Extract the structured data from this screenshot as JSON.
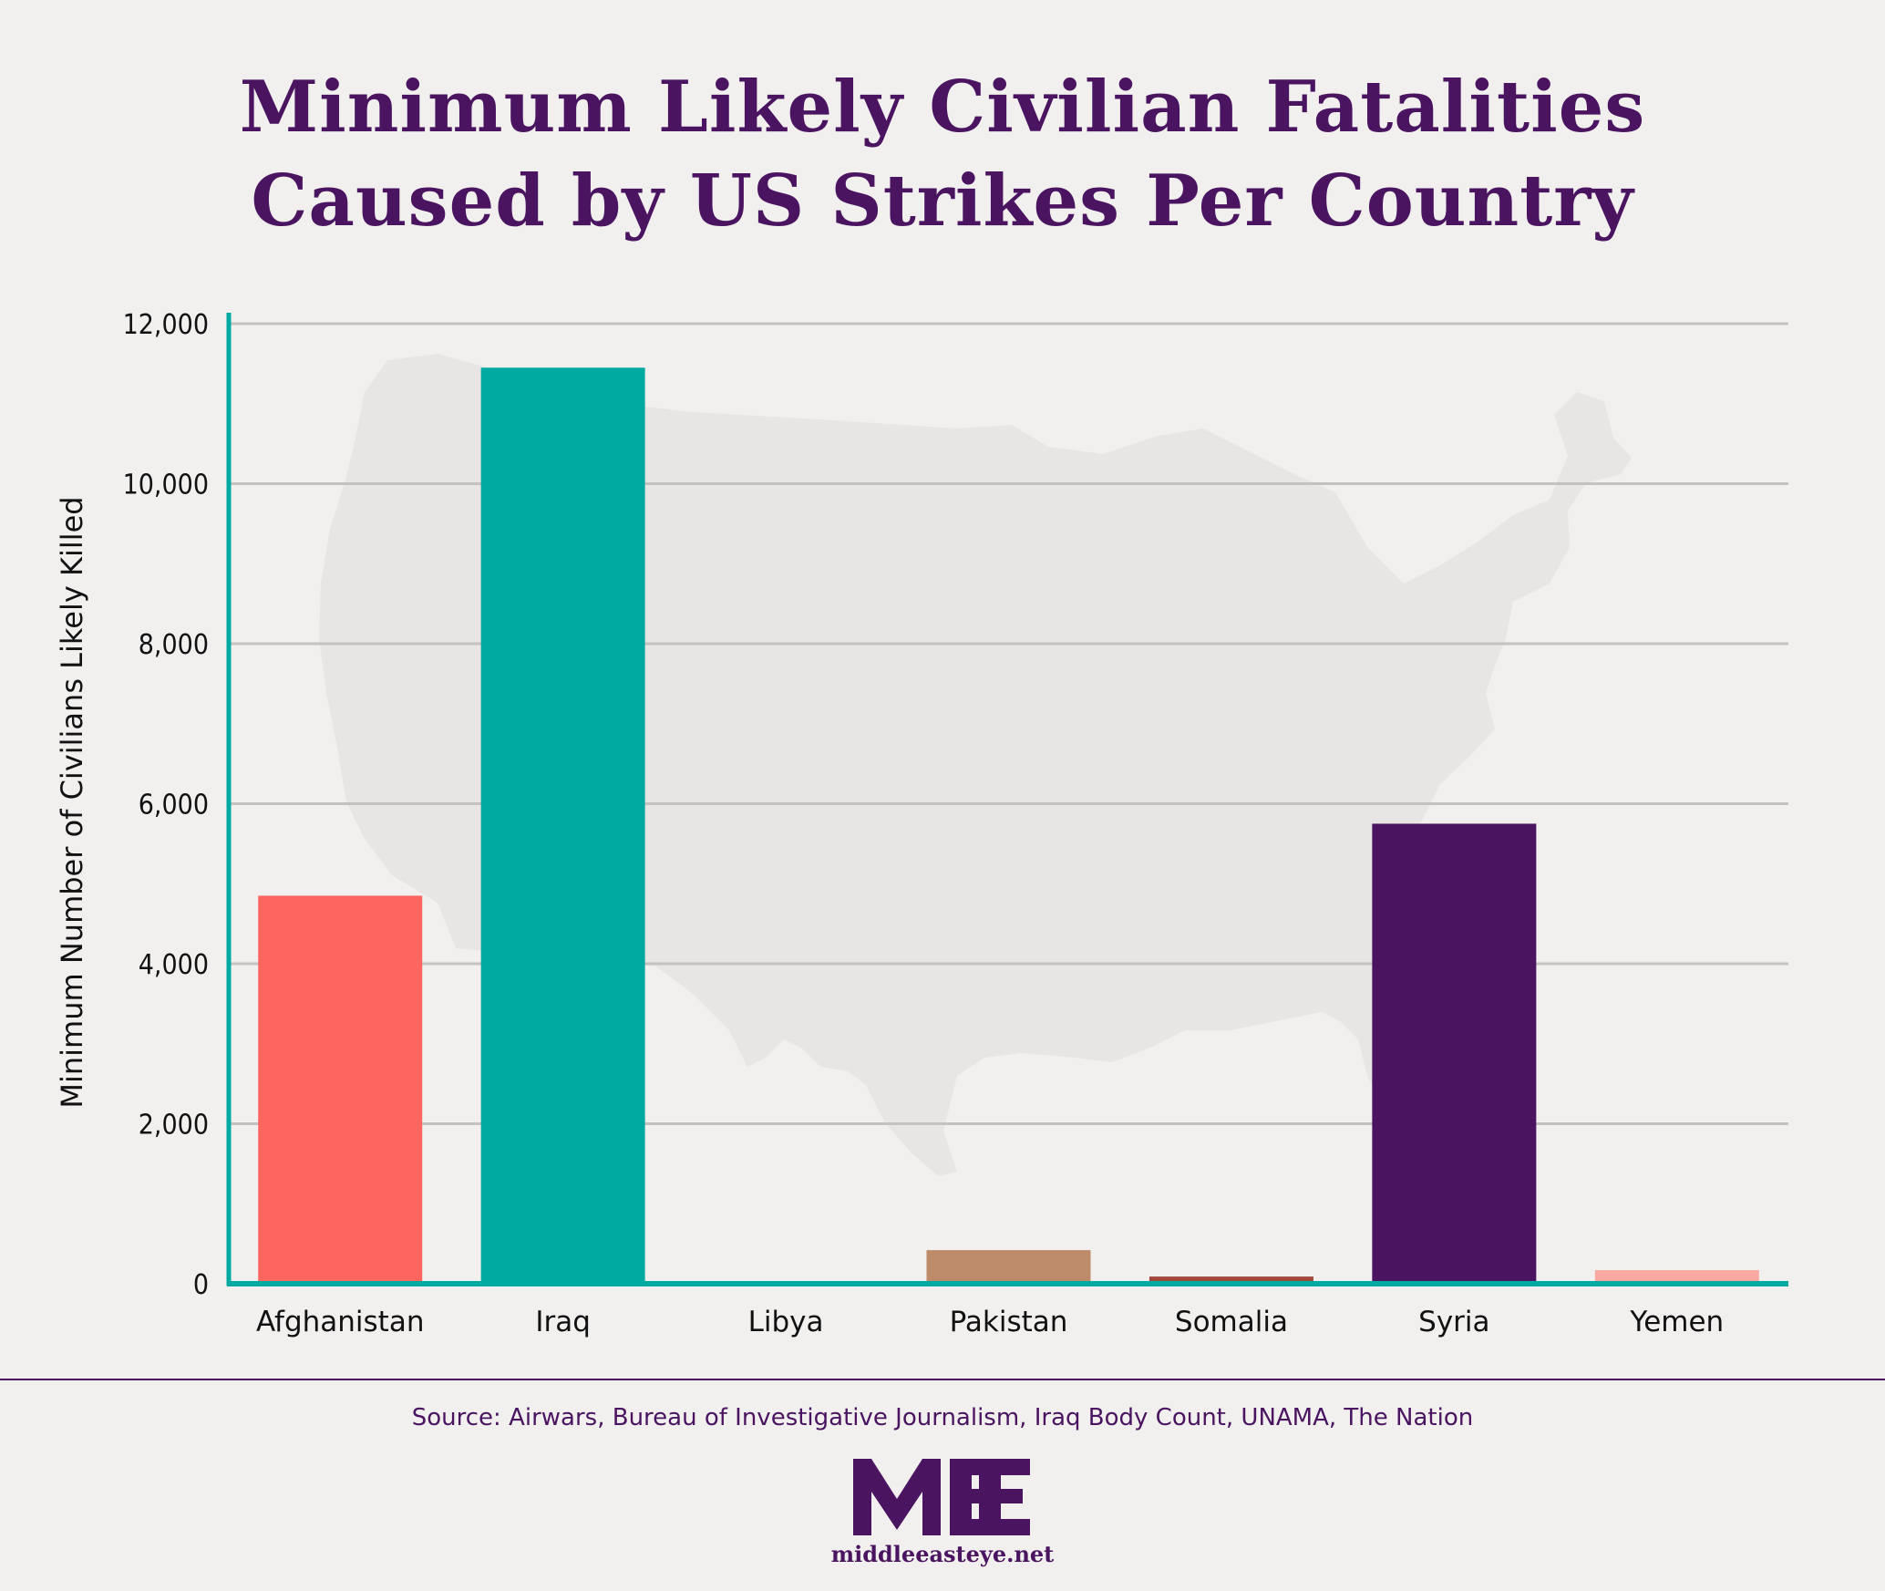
{
  "title_lines": [
    "Minimum Likely Civilian Fatalities",
    "Caused by US Strikes Per Country"
  ],
  "source": "Source: Airwars, Bureau of Investigative Journalism, Iraq Body Count, UNAMA, The Nation",
  "site": "middleeasteye.net",
  "logo_text": "MEE",
  "colors": {
    "title": "#4a1460",
    "axis": "#00aaa0",
    "grid": "#c4c2c1",
    "map": "#e7e6e4"
  },
  "background_icon": "us-map-silhouette",
  "chart_data": {
    "type": "bar",
    "title": "Minimum Likely Civilian Fatalities Caused by US Strikes Per Country",
    "xlabel": "",
    "ylabel": "Minimum Number of Civilians Likely Killed",
    "ylim": [
      0,
      12000
    ],
    "yticks": [
      0,
      2000,
      4000,
      6000,
      8000,
      10000,
      12000
    ],
    "ytick_labels": [
      "0",
      "2,000",
      "4,000",
      "6,000",
      "8,000",
      "10,000",
      "12,000"
    ],
    "grid": true,
    "legend": "none",
    "categories": [
      "Afghanistan",
      "Iraq",
      "Libya",
      "Pakistan",
      "Somalia",
      "Syria",
      "Yemen"
    ],
    "values": [
      4850,
      11450,
      10,
      420,
      90,
      5750,
      170
    ],
    "bar_colors": [
      "#ff6660",
      "#00aaa0",
      "#d9a89c",
      "#bd8a6a",
      "#a14a3c",
      "#4a1460",
      "#f7a9a2"
    ]
  }
}
